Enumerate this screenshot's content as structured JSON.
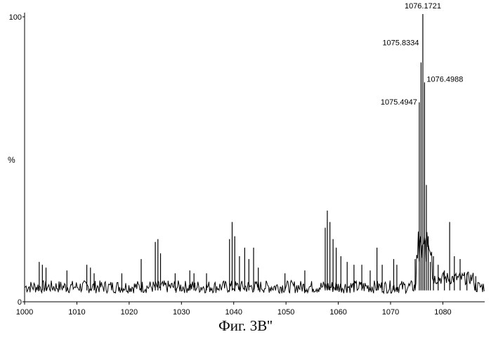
{
  "chart_data": {
    "type": "line",
    "title": "",
    "xlabel": "",
    "ylabel": "%",
    "xlim": [
      1000,
      1088
    ],
    "ylim": [
      0,
      100
    ],
    "x_ticks": [
      1000,
      1010,
      1020,
      1030,
      1040,
      1050,
      1060,
      1070,
      1080
    ],
    "y_ticks": [
      {
        "value": 0,
        "label": "0"
      },
      {
        "value": 100,
        "label": "100"
      }
    ],
    "grid": false,
    "legend": "none",
    "peak_labels": [
      {
        "x": 1076.1721,
        "y": 103,
        "label": "1076.1721"
      },
      {
        "x": 1075.8334,
        "y": 91,
        "label": "1075.8334"
      },
      {
        "x": 1076.4988,
        "y": 77,
        "label": "1076.4988"
      },
      {
        "x": 1075.4947,
        "y": 70,
        "label": "1075.4947"
      }
    ],
    "peaks": [
      {
        "x": 1002.8,
        "y": 14
      },
      {
        "x": 1003.4,
        "y": 13
      },
      {
        "x": 1004.1,
        "y": 12
      },
      {
        "x": 1008.1,
        "y": 11
      },
      {
        "x": 1011.9,
        "y": 13
      },
      {
        "x": 1012.6,
        "y": 12
      },
      {
        "x": 1013.3,
        "y": 10
      },
      {
        "x": 1018.6,
        "y": 10
      },
      {
        "x": 1022.3,
        "y": 15
      },
      {
        "x": 1025.0,
        "y": 21
      },
      {
        "x": 1025.5,
        "y": 22
      },
      {
        "x": 1026.0,
        "y": 17
      },
      {
        "x": 1028.8,
        "y": 10
      },
      {
        "x": 1031.6,
        "y": 11
      },
      {
        "x": 1032.4,
        "y": 10
      },
      {
        "x": 1034.8,
        "y": 10
      },
      {
        "x": 1039.2,
        "y": 22
      },
      {
        "x": 1039.7,
        "y": 28
      },
      {
        "x": 1040.2,
        "y": 23
      },
      {
        "x": 1041.1,
        "y": 16
      },
      {
        "x": 1042.1,
        "y": 19
      },
      {
        "x": 1042.9,
        "y": 15
      },
      {
        "x": 1043.8,
        "y": 19
      },
      {
        "x": 1044.7,
        "y": 12
      },
      {
        "x": 1049.8,
        "y": 10
      },
      {
        "x": 1053.6,
        "y": 11
      },
      {
        "x": 1057.5,
        "y": 26
      },
      {
        "x": 1057.9,
        "y": 32
      },
      {
        "x": 1058.4,
        "y": 28
      },
      {
        "x": 1059.0,
        "y": 22
      },
      {
        "x": 1059.6,
        "y": 19
      },
      {
        "x": 1060.5,
        "y": 16
      },
      {
        "x": 1061.7,
        "y": 14
      },
      {
        "x": 1063.0,
        "y": 13
      },
      {
        "x": 1064.5,
        "y": 13
      },
      {
        "x": 1066.1,
        "y": 11
      },
      {
        "x": 1067.4,
        "y": 19
      },
      {
        "x": 1068.4,
        "y": 13
      },
      {
        "x": 1070.6,
        "y": 15
      },
      {
        "x": 1071.2,
        "y": 13
      },
      {
        "x": 1074.7,
        "y": 15
      },
      {
        "x": 1075.4947,
        "y": 70
      },
      {
        "x": 1075.8334,
        "y": 84
      },
      {
        "x": 1076.1721,
        "y": 101
      },
      {
        "x": 1076.4988,
        "y": 77
      },
      {
        "x": 1076.85,
        "y": 41
      },
      {
        "x": 1077.2,
        "y": 23
      },
      {
        "x": 1077.6,
        "y": 14
      },
      {
        "x": 1078.2,
        "y": 16
      },
      {
        "x": 1079.1,
        "y": 13
      },
      {
        "x": 1080.3,
        "y": 11
      },
      {
        "x": 1081.3,
        "y": 28
      },
      {
        "x": 1082.2,
        "y": 16
      },
      {
        "x": 1083.3,
        "y": 15
      },
      {
        "x": 1084.6,
        "y": 10
      },
      {
        "x": 1086.3,
        "y": 9
      }
    ]
  },
  "caption": "Фиг. 3В''"
}
